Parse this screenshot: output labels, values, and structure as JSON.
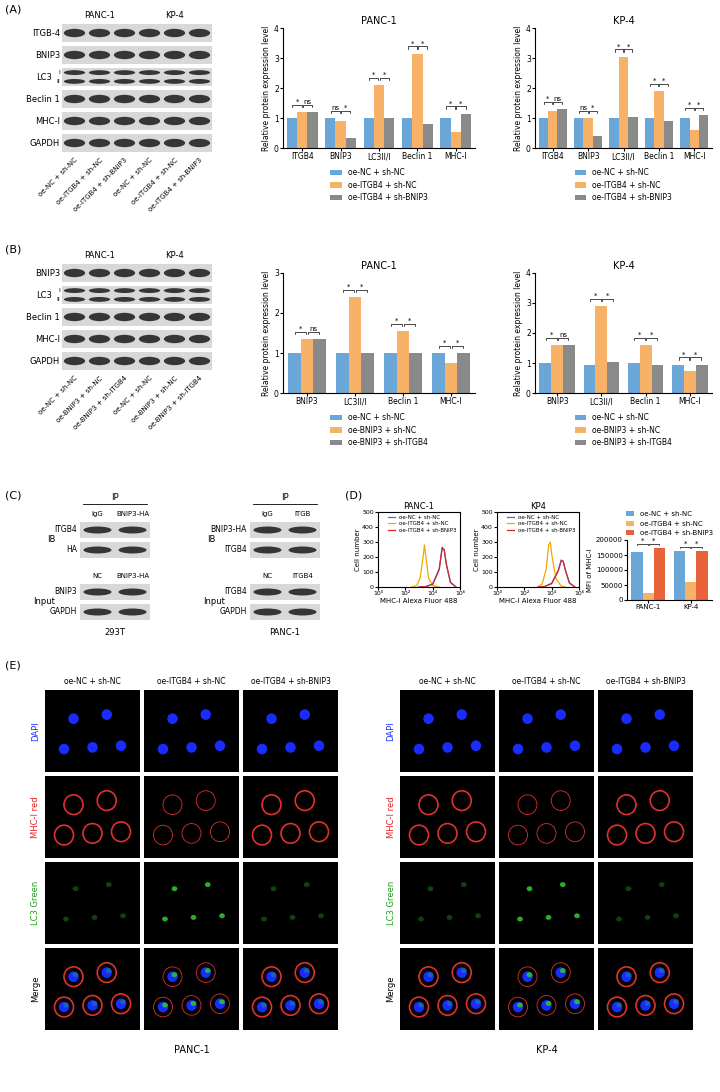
{
  "blots": [
    {
      "panel": "(A)",
      "groups": [
        "PANC-1",
        "KP-4"
      ],
      "lanes": [
        "oe-NC + sh-NC",
        "oe-ITGB4 + sh-NC",
        "oe-ITGB4 + sh-BNIP3"
      ],
      "rows": [
        {
          "label": "ITGB-4"
        },
        {
          "label": "BNIP3"
        },
        {
          "label": "LC3",
          "sublabels": [
            "I",
            "II"
          ]
        },
        {
          "label": "Beclin 1"
        },
        {
          "label": "MHC-I"
        },
        {
          "label": "GAPDH"
        }
      ]
    },
    {
      "panel": "(B)",
      "groups": [
        "PANC-1",
        "KP-4"
      ],
      "lanes": [
        "oe-NC + sh-NC",
        "oe-BNIP3 + sh-NC",
        "oe-BNIP3 + sh-ITGB4"
      ],
      "rows": [
        {
          "label": "BNIP3"
        },
        {
          "label": "LC3",
          "sublabels": [
            "I",
            "II"
          ]
        },
        {
          "label": "Beclin 1"
        },
        {
          "label": "MHC-I"
        },
        {
          "label": "GAPDH"
        }
      ]
    }
  ],
  "co_ip": {
    "panel": "(C)",
    "blots": [
      {
        "cell_line": "293T",
        "ip": {
          "header": "IP",
          "side_label": "IB",
          "lanes": [
            "IgG",
            "BNIP3-HA"
          ],
          "rows": [
            "ITGB4",
            "HA"
          ]
        },
        "input": {
          "side_label": "Input",
          "lanes": [
            "NC",
            "BNIP3-HA"
          ],
          "rows": [
            "BNIP3",
            "GAPDH"
          ]
        }
      },
      {
        "cell_line": "PANC-1",
        "ip": {
          "header": "IP",
          "side_label": "IB",
          "lanes": [
            "IgG",
            "ITGB"
          ],
          "rows": [
            "BNIP3-HA",
            "ITGB4"
          ]
        },
        "input": {
          "side_label": "Input",
          "lanes": [
            "NC",
            "ITGB4"
          ],
          "rows": [
            "ITGB4",
            "GAPDH"
          ]
        }
      }
    ]
  },
  "chart_data": [
    {
      "type": "bar",
      "title": "PANC-1",
      "y_label": "Relative protein expression level",
      "categories": [
        "ITGB4",
        "BNIP3",
        "LC3II/I",
        "Beclin 1",
        "MHC-I"
      ],
      "series": [
        {
          "name": "oe-NC + sh-NC",
          "color": "#6aa6d8",
          "values": [
            1,
            1,
            1,
            1,
            1
          ]
        },
        {
          "name": "oe-ITGB4 + sh-NC",
          "color": "#f7b267",
          "values": [
            1.2,
            0.9,
            2.1,
            3.15,
            0.55
          ]
        },
        {
          "name": "oe-ITGB4 + sh-BNIP3",
          "color": "#8a8a8a",
          "values": [
            1.2,
            0.35,
            1.0,
            0.8,
            1.15
          ]
        }
      ],
      "significance": [
        [
          "*",
          "ns"
        ],
        [
          "ns",
          "*"
        ],
        [
          "*",
          "*"
        ],
        [
          "*",
          "*"
        ],
        [
          "*",
          "*"
        ]
      ],
      "ylim": [
        0,
        4
      ],
      "yticks": [
        0,
        1,
        2,
        3,
        4
      ],
      "legend": "bottom"
    },
    {
      "type": "bar",
      "title": "KP-4",
      "y_label": "Relative protein expression level",
      "categories": [
        "ITGB4",
        "BNIP3",
        "LC3II/I",
        "Beclin 1",
        "MHC-I"
      ],
      "series": [
        {
          "name": "oe-NC + sh-NC",
          "color": "#6aa6d8",
          "values": [
            1,
            1,
            1,
            1,
            1
          ]
        },
        {
          "name": "oe-ITGB4 + sh-NC",
          "color": "#f7b267",
          "values": [
            1.25,
            1.0,
            3.05,
            1.9,
            0.6
          ]
        },
        {
          "name": "oe-ITGB4 + sh-BNIP3",
          "color": "#8a8a8a",
          "values": [
            1.3,
            0.4,
            1.05,
            0.9,
            1.1
          ]
        }
      ],
      "significance": [
        [
          "*",
          "ns"
        ],
        [
          "ns",
          "*"
        ],
        [
          "*",
          "*"
        ],
        [
          "*",
          "*"
        ],
        [
          "*",
          "*"
        ]
      ],
      "ylim": [
        0,
        4
      ],
      "yticks": [
        0,
        1,
        2,
        3,
        4
      ],
      "legend": "bottom"
    },
    {
      "type": "bar",
      "title": "PANC-1",
      "y_label": "Relative protein expression level",
      "categories": [
        "BNIP3",
        "LC3II/I",
        "Beclin 1",
        "MHC-I"
      ],
      "series": [
        {
          "name": "oe-NC + sh-NC",
          "color": "#6aa6d8",
          "values": [
            1,
            1,
            1,
            1
          ]
        },
        {
          "name": "oe-BNIP3 + sh-NC",
          "color": "#f7b267",
          "values": [
            1.35,
            2.4,
            1.55,
            0.75
          ]
        },
        {
          "name": "oe-BNIP3 + sh-ITGB4",
          "color": "#8a8a8a",
          "values": [
            1.35,
            1.0,
            1.0,
            1.0
          ]
        }
      ],
      "significance": [
        [
          "*",
          "ns"
        ],
        [
          "*",
          "*"
        ],
        [
          "*",
          "*"
        ],
        [
          "*",
          "*"
        ]
      ],
      "ylim": [
        0,
        3
      ],
      "yticks": [
        0,
        1,
        2,
        3
      ],
      "legend": "bottom"
    },
    {
      "type": "bar",
      "title": "KP-4",
      "y_label": "Relative protein expression level",
      "categories": [
        "BNIP3",
        "LC3II/I",
        "Beclin 1",
        "MHC-I"
      ],
      "series": [
        {
          "name": "oe-NC + sh-NC",
          "color": "#6aa6d8",
          "values": [
            1,
            0.95,
            1,
            0.95
          ]
        },
        {
          "name": "oe-BNIP3 + sh-NC",
          "color": "#f7b267",
          "values": [
            1.6,
            2.9,
            1.6,
            0.75
          ]
        },
        {
          "name": "oe-BNIP3 + sh-ITGB4",
          "color": "#8a8a8a",
          "values": [
            1.6,
            1.05,
            0.95,
            0.95
          ]
        }
      ],
      "significance": [
        [
          "*",
          "ns"
        ],
        [
          "*",
          "*"
        ],
        [
          "*",
          "*"
        ],
        [
          "*",
          "*"
        ]
      ],
      "ylim": [
        0,
        4
      ],
      "yticks": [
        0,
        1,
        2,
        3,
        4
      ],
      "legend": "bottom"
    },
    {
      "type": "line",
      "panel": "(D)",
      "title": "PANC-1",
      "x_label": "MHC-I Alexa Fluor 488",
      "y_label": "Cell number",
      "log": "x",
      "xlim": [
        1,
        1000000
      ],
      "xticks": [
        {
          "value": 1,
          "label": "10⁰"
        },
        {
          "value": 100,
          "label": "10²"
        },
        {
          "value": 10000,
          "label": "10⁴"
        },
        {
          "value": 1000000,
          "label": "10⁶"
        }
      ],
      "ylim": [
        0,
        500
      ],
      "yticks": [
        0,
        100,
        200,
        300,
        400,
        500
      ],
      "legend": "upper right",
      "series": [
        {
          "name": "oe-NC + sh-NC",
          "color": "#3a6fd8",
          "x": [
            1000,
            3000,
            10000,
            30000,
            50000,
            70000,
            100000,
            200000,
            500000
          ],
          "values": [
            0,
            2,
            20,
            120,
            260,
            250,
            150,
            30,
            0
          ]
        },
        {
          "name": "oe-ITGB4 + sh-NC",
          "color": "#f0a800",
          "x": [
            300,
            700,
            1200,
            2000,
            2500,
            3000,
            5000,
            10000,
            30000
          ],
          "values": [
            0,
            10,
            60,
            200,
            280,
            220,
            60,
            10,
            0
          ]
        },
        {
          "name": "oe-ITGB4 + sh-BNIP3",
          "color": "#d62728",
          "x": [
            1000,
            3000,
            10000,
            30000,
            50000,
            70000,
            100000,
            200000,
            500000
          ],
          "values": [
            0,
            2,
            18,
            115,
            265,
            245,
            155,
            32,
            0
          ]
        }
      ]
    },
    {
      "type": "line",
      "title": "KP4",
      "x_label": "MHC-I Alexa Fluor 488",
      "y_label": "Cell number",
      "log": "x",
      "xlim": [
        1,
        1000000
      ],
      "xticks": [
        {
          "value": 1,
          "label": "10⁰"
        },
        {
          "value": 100,
          "label": "10²"
        },
        {
          "value": 10000,
          "label": "10⁴"
        },
        {
          "value": 1000000,
          "label": "10⁶"
        }
      ],
      "ylim": [
        0,
        500
      ],
      "yticks": [
        0,
        100,
        200,
        300,
        400,
        500
      ],
      "legend": "upper right",
      "series": [
        {
          "name": "oe-NC + sh-NC",
          "color": "#3a6fd8",
          "x": [
            1000,
            3000,
            10000,
            30000,
            50000,
            70000,
            100000,
            200000,
            500000
          ],
          "values": [
            0,
            3,
            25,
            110,
            180,
            170,
            110,
            25,
            0
          ]
        },
        {
          "name": "oe-ITGB4 + sh-NC",
          "color": "#f0a800",
          "x": [
            1000,
            2000,
            4000,
            6000,
            8000,
            10000,
            20000,
            50000,
            100000
          ],
          "values": [
            0,
            20,
            120,
            280,
            300,
            220,
            60,
            5,
            0
          ]
        },
        {
          "name": "oe-ITGB4 + sh-BNIP3",
          "color": "#d62728",
          "x": [
            1000,
            3000,
            10000,
            30000,
            50000,
            70000,
            100000,
            200000,
            500000
          ],
          "values": [
            0,
            3,
            22,
            105,
            175,
            172,
            115,
            28,
            0
          ]
        }
      ]
    },
    {
      "type": "bar",
      "y_label": "MFI of MHC-I",
      "categories": [
        "PANC-1",
        "KP-4"
      ],
      "series": [
        {
          "name": "oe-NC + sh-NC",
          "color": "#6aa6d8",
          "values": [
            160000,
            162000
          ]
        },
        {
          "name": "oe-ITGB4 + sh-NC",
          "color": "#f7b267",
          "values": [
            25000,
            60000
          ]
        },
        {
          "name": "oe-ITGB4 + sh-BNIP3",
          "color": "#e8623a",
          "values": [
            175000,
            165000
          ]
        }
      ],
      "significance": [
        [
          "*",
          "*"
        ],
        [
          "*",
          "*"
        ]
      ],
      "ylim": [
        0,
        200000
      ],
      "yticks": [
        0,
        50000,
        100000,
        150000,
        200000
      ],
      "legend": "top"
    }
  ],
  "microscopy": {
    "panel": "(E)",
    "channels": [
      "DAPI",
      "MHC-I red",
      "LC3 Green",
      "Merge"
    ],
    "groups": [
      {
        "cell_line": "PANC-1",
        "conditions": [
          "oe-NC + sh-NC",
          "oe-ITGB4 + sh-NC",
          "oe-ITGB4 + sh-BNIP3"
        ]
      },
      {
        "cell_line": "KP-4",
        "conditions": [
          "oe-NC + sh-NC",
          "oe-ITGB4 + sh-NC",
          "oe-ITGB4 + sh-BNIP3"
        ]
      }
    ]
  }
}
